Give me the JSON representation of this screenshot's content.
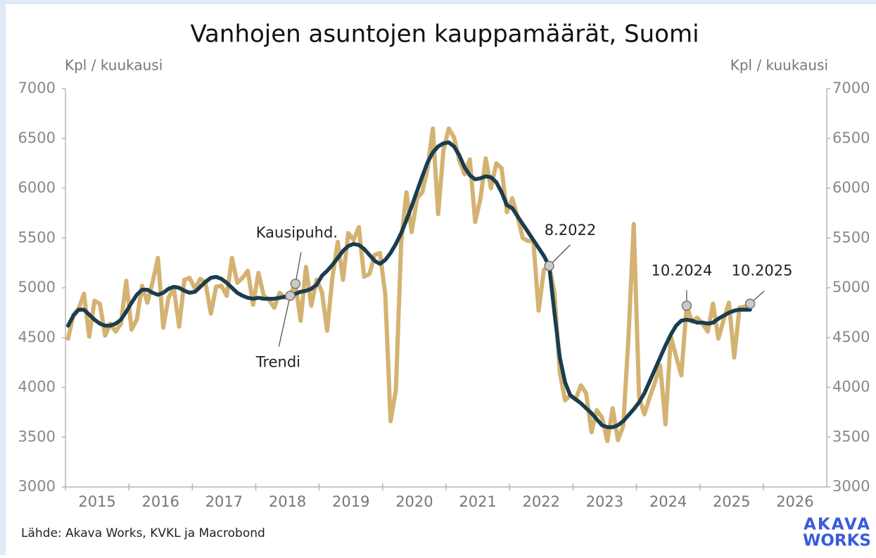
{
  "chart_data": {
    "type": "line",
    "title": "Vanhojen asuntojen kauppamäärät, Suomi",
    "y_label": "Kpl / kuukausi",
    "y2_label": "Kpl / kuukausi",
    "source": "Lähde: Akava Works, KVKL ja Macrobond",
    "logo": [
      "AKAVA",
      "WORKS"
    ],
    "xlim": [
      2015,
      2027
    ],
    "xticks": [
      2015,
      2016,
      2017,
      2018,
      2019,
      2020,
      2021,
      2022,
      2023,
      2024,
      2025,
      2026
    ],
    "ylim": [
      3000,
      7000
    ],
    "yticks": [
      3000,
      3500,
      4000,
      4500,
      5000,
      5500,
      6000,
      6500,
      7000
    ],
    "y2lim": [
      3000,
      7000
    ],
    "y2ticks": [
      3000,
      3500,
      4000,
      4500,
      5000,
      5500,
      6000,
      6500,
      7000
    ],
    "x": [
      2015.042,
      2015.125,
      2015.208,
      2015.292,
      2015.375,
      2015.458,
      2015.542,
      2015.625,
      2015.708,
      2015.792,
      2015.875,
      2015.958,
      2016.042,
      2016.125,
      2016.208,
      2016.292,
      2016.375,
      2016.458,
      2016.542,
      2016.625,
      2016.708,
      2016.792,
      2016.875,
      2016.958,
      2017.042,
      2017.125,
      2017.208,
      2017.292,
      2017.375,
      2017.458,
      2017.542,
      2017.625,
      2017.708,
      2017.792,
      2017.875,
      2017.958,
      2018.042,
      2018.125,
      2018.208,
      2018.292,
      2018.375,
      2018.458,
      2018.542,
      2018.625,
      2018.708,
      2018.792,
      2018.875,
      2018.958,
      2019.042,
      2019.125,
      2019.208,
      2019.292,
      2019.375,
      2019.458,
      2019.542,
      2019.625,
      2019.708,
      2019.792,
      2019.875,
      2019.958,
      2020.042,
      2020.125,
      2020.208,
      2020.292,
      2020.375,
      2020.458,
      2020.542,
      2020.625,
      2020.708,
      2020.792,
      2020.875,
      2020.958,
      2021.042,
      2021.125,
      2021.208,
      2021.292,
      2021.375,
      2021.458,
      2021.542,
      2021.625,
      2021.708,
      2021.792,
      2021.875,
      2021.958,
      2022.042,
      2022.125,
      2022.208,
      2022.292,
      2022.375,
      2022.458,
      2022.542,
      2022.625,
      2022.708,
      2022.792,
      2022.875,
      2022.958,
      2023.042,
      2023.125,
      2023.208,
      2023.292,
      2023.375,
      2023.458,
      2023.542,
      2023.625,
      2023.708,
      2023.792,
      2023.875,
      2023.958,
      2024.042,
      2024.125,
      2024.208,
      2024.292,
      2024.375,
      2024.458,
      2024.542,
      2024.625,
      2024.708,
      2024.792,
      2024.875,
      2024.958,
      2025.042,
      2025.125,
      2025.208,
      2025.292,
      2025.375,
      2025.458,
      2025.542,
      2025.625,
      2025.708,
      2025.792
    ],
    "series": [
      {
        "name": "Kausipuhd.",
        "color": "#d4b271",
        "values": [
          4490,
          4730,
          4790,
          4940,
          4510,
          4870,
          4840,
          4520,
          4640,
          4560,
          4640,
          5070,
          4580,
          4680,
          5020,
          4850,
          5060,
          5300,
          4600,
          4900,
          5000,
          4610,
          5080,
          5100,
          4990,
          5090,
          5050,
          4740,
          5010,
          5020,
          4920,
          5300,
          5050,
          5100,
          5170,
          4830,
          5150,
          4920,
          4880,
          4800,
          4950,
          4900,
          4930,
          5040,
          4670,
          5210,
          4820,
          5080,
          4960,
          4570,
          5100,
          5460,
          5080,
          5550,
          5480,
          5610,
          5110,
          5140,
          5330,
          5350,
          4930,
          3660,
          3970,
          5460,
          5960,
          5560,
          5900,
          5960,
          6200,
          6600,
          5740,
          6380,
          6600,
          6510,
          6280,
          6140,
          6290,
          5660,
          5900,
          6300,
          6000,
          6250,
          6200,
          5760,
          5900,
          5720,
          5500,
          5470,
          5470,
          4770,
          5180,
          5220,
          4950,
          4150,
          3870,
          3920,
          3880,
          4020,
          3940,
          3550,
          3770,
          3700,
          3460,
          3790,
          3470,
          3610,
          4500,
          5640,
          3900,
          3730,
          3900,
          4050,
          4220,
          3630,
          4510,
          4310,
          4120,
          4820,
          4660,
          4700,
          4640,
          4560,
          4840,
          4490,
          4680,
          4850,
          4300,
          4800,
          4810,
          4840
        ]
      },
      {
        "name": "Trendi",
        "color": "#1a3d4f",
        "values": [
          4620,
          4720,
          4780,
          4780,
          4730,
          4680,
          4640,
          4620,
          4620,
          4640,
          4680,
          4760,
          4850,
          4930,
          4980,
          4980,
          4950,
          4930,
          4950,
          4990,
          5010,
          5000,
          4970,
          4950,
          4960,
          5010,
          5060,
          5100,
          5110,
          5090,
          5050,
          5000,
          4950,
          4920,
          4900,
          4890,
          4900,
          4890,
          4890,
          4890,
          4900,
          4910,
          4920,
          4940,
          4960,
          4970,
          4990,
          5030,
          5120,
          5170,
          5230,
          5300,
          5370,
          5420,
          5440,
          5430,
          5390,
          5330,
          5270,
          5240,
          5280,
          5350,
          5440,
          5550,
          5680,
          5820,
          5970,
          6120,
          6260,
          6360,
          6420,
          6450,
          6460,
          6420,
          6330,
          6210,
          6130,
          6090,
          6100,
          6120,
          6110,
          6060,
          5960,
          5830,
          5800,
          5720,
          5640,
          5560,
          5480,
          5400,
          5320,
          5220,
          4750,
          4300,
          4050,
          3920,
          3880,
          3840,
          3790,
          3740,
          3680,
          3620,
          3600,
          3600,
          3620,
          3660,
          3720,
          3780,
          3850,
          3940,
          4060,
          4180,
          4300,
          4420,
          4530,
          4620,
          4670,
          4680,
          4670,
          4650,
          4650,
          4640,
          4650,
          4690,
          4720,
          4750,
          4770,
          4780,
          4780,
          4780
        ]
      }
    ],
    "annotations": [
      {
        "text": "8.2022",
        "x": 2022.625,
        "y": 5220
      },
      {
        "text": "10.2024",
        "x": 2024.792,
        "y": 4820
      },
      {
        "text": "10.2025",
        "x": 2025.792,
        "y": 4840
      }
    ]
  }
}
